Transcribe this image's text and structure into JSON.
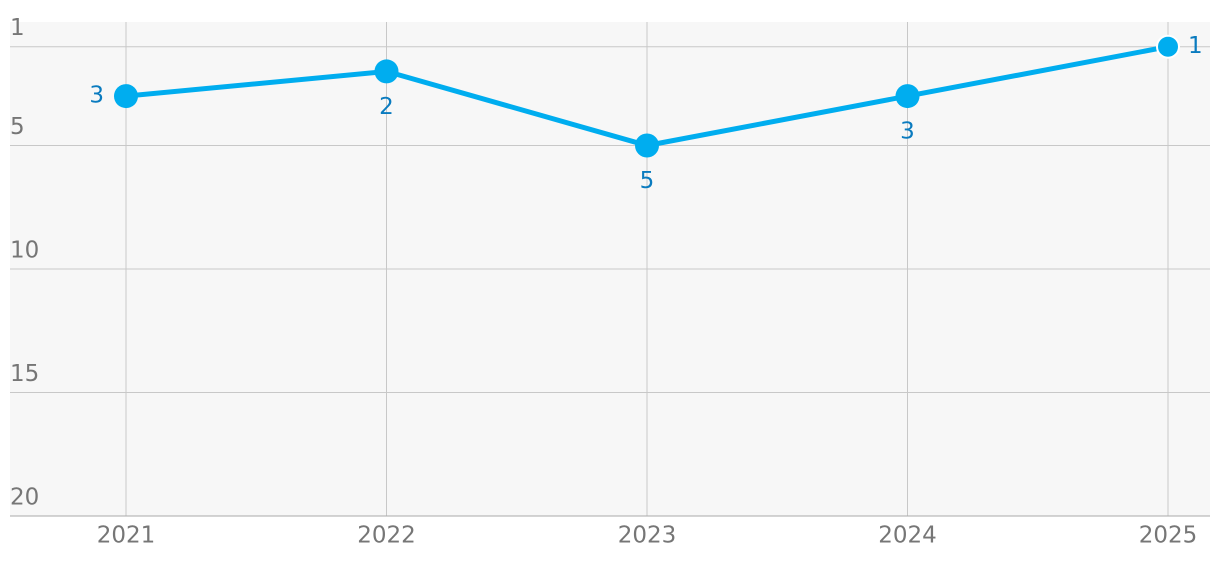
{
  "chart_data": {
    "type": "line",
    "categories": [
      "2021",
      "2022",
      "2023",
      "2024",
      "2025"
    ],
    "values": [
      3,
      2,
      5,
      3,
      1
    ],
    "color": "#00adef",
    "label_color": "#0a7bbf",
    "ylim": [
      20,
      0
    ],
    "yticks": [
      1,
      5,
      10,
      15,
      20
    ],
    "grid": true
  }
}
